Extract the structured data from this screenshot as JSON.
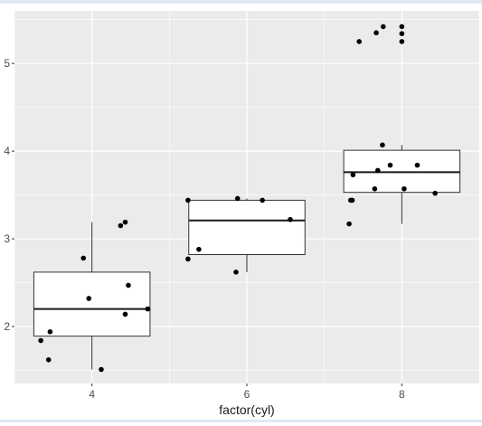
{
  "chart_data": {
    "type": "boxplot",
    "xlabel": "factor(cyl)",
    "ylabel": "",
    "title": "",
    "x_ticks": [
      "4",
      "6",
      "8"
    ],
    "y_ticks": [
      "2",
      "3",
      "4",
      "5"
    ],
    "xlim": [
      3.0,
      9.0
    ],
    "ylim": [
      1.35,
      5.6
    ],
    "grid": true,
    "panel_background": "#ebebeb",
    "grid_color": "#ffffff",
    "boxes": [
      {
        "x": 4,
        "width": 1.5,
        "q1": 1.89,
        "median": 2.2,
        "q3": 2.62,
        "whisker_low": 1.51,
        "whisker_high": 3.19
      },
      {
        "x": 6,
        "width": 1.5,
        "q1": 2.82,
        "median": 3.21,
        "q3": 3.44,
        "whisker_low": 2.62,
        "whisker_high": 3.46
      },
      {
        "x": 8,
        "width": 1.5,
        "q1": 3.53,
        "median": 3.76,
        "q3": 4.01,
        "whisker_low": 3.17,
        "whisker_high": 4.07
      }
    ],
    "points": [
      {
        "x": 3.34,
        "y": 1.84
      },
      {
        "x": 3.44,
        "y": 1.62
      },
      {
        "x": 3.46,
        "y": 1.94
      },
      {
        "x": 3.96,
        "y": 2.32
      },
      {
        "x": 4.12,
        "y": 1.51
      },
      {
        "x": 3.89,
        "y": 2.78
      },
      {
        "x": 4.37,
        "y": 3.15
      },
      {
        "x": 4.43,
        "y": 3.19
      },
      {
        "x": 4.47,
        "y": 2.47
      },
      {
        "x": 4.43,
        "y": 2.14
      },
      {
        "x": 4.72,
        "y": 2.2
      },
      {
        "x": 5.24,
        "y": 2.77
      },
      {
        "x": 5.38,
        "y": 2.88
      },
      {
        "x": 5.24,
        "y": 3.44
      },
      {
        "x": 5.86,
        "y": 2.62
      },
      {
        "x": 5.88,
        "y": 3.46
      },
      {
        "x": 6.2,
        "y": 3.44
      },
      {
        "x": 6.56,
        "y": 3.22
      },
      {
        "x": 7.32,
        "y": 3.17
      },
      {
        "x": 7.34,
        "y": 3.44
      },
      {
        "x": 7.36,
        "y": 3.44
      },
      {
        "x": 7.37,
        "y": 3.73
      },
      {
        "x": 7.65,
        "y": 3.57
      },
      {
        "x": 7.69,
        "y": 3.78
      },
      {
        "x": 7.85,
        "y": 3.84
      },
      {
        "x": 7.75,
        "y": 4.07
      },
      {
        "x": 8.03,
        "y": 3.57
      },
      {
        "x": 8.2,
        "y": 3.84
      },
      {
        "x": 8.43,
        "y": 3.52
      },
      {
        "x": 7.45,
        "y": 5.25
      },
      {
        "x": 7.67,
        "y": 5.35
      },
      {
        "x": 7.76,
        "y": 5.42
      },
      {
        "x": 8.0,
        "y": 5.25
      },
      {
        "x": 8.0,
        "y": 5.34
      },
      {
        "x": 8.0,
        "y": 5.42
      }
    ]
  }
}
